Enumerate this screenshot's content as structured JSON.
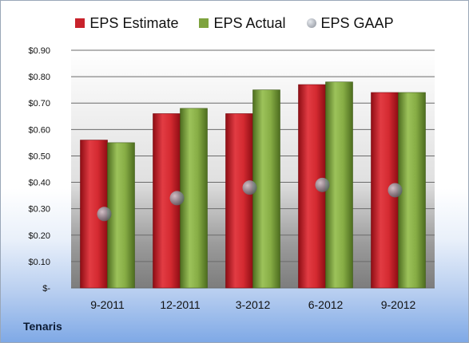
{
  "chart_data": {
    "type": "bar",
    "categories": [
      "9-2011",
      "12-2011",
      "3-2012",
      "6-2012",
      "9-2012"
    ],
    "series": [
      {
        "name": "EPS Estimate",
        "kind": "bar",
        "color": "#c8222b",
        "values": [
          0.56,
          0.66,
          0.66,
          0.77,
          0.74
        ]
      },
      {
        "name": "EPS Actual",
        "kind": "bar",
        "color": "#7ea33e",
        "values": [
          0.55,
          0.68,
          0.75,
          0.78,
          0.74
        ]
      },
      {
        "name": "EPS GAAP",
        "kind": "marker",
        "color": "#8a8f98",
        "values": [
          0.28,
          0.34,
          0.38,
          0.39,
          0.37
        ]
      }
    ],
    "ylim": [
      0,
      0.9
    ],
    "yticks": [
      0,
      0.1,
      0.2,
      0.3,
      0.4,
      0.5,
      0.6,
      0.7,
      0.8,
      0.9
    ],
    "ytick_labels": [
      "$-",
      "$0.10",
      "$0.20",
      "$0.30",
      "$0.40",
      "$0.50",
      "$0.60",
      "$0.70",
      "$0.80",
      "$0.90"
    ],
    "grid": true,
    "legend_position": "top"
  },
  "company": "Tenaris"
}
